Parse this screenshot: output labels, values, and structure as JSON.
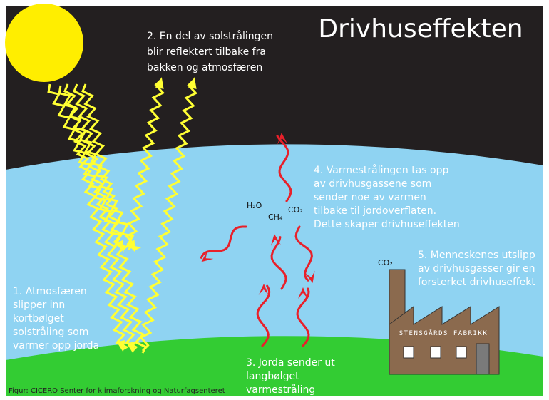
{
  "title": "Drivhuseffekten",
  "step_2": [
    "2. En del av solstrålingen",
    "blir reflektert tilbake fra",
    "bakken og atmosfæren"
  ],
  "step_1": [
    "1. Atmosfæren",
    "slipper inn",
    "kortbølget",
    "solstråling som",
    "varmer opp jorda"
  ],
  "step_3": [
    "3. Jorda sender ut",
    "langbølget",
    "varmestråling"
  ],
  "step_4": [
    "4. Varmestrålingen tas opp",
    "av drivhusgassene som",
    "sender noe av varmen",
    "tilbake til jordoverflaten.",
    "Dette skaper drivhuseffekten"
  ],
  "step_5": [
    "5. Menneskenes utslipp",
    "av drivhusgasser gir en",
    "forsterket drivhuseffekt"
  ],
  "gases": {
    "h2o": "H₂O",
    "ch4": "CH₄",
    "co2": "CO₂",
    "factory_co2": "CO₂"
  },
  "factory_sign": "STENSGÅRDS FABRIKK",
  "credit": "Figur: CICERO Senter for klimaforskning og Naturfagsenteret"
}
